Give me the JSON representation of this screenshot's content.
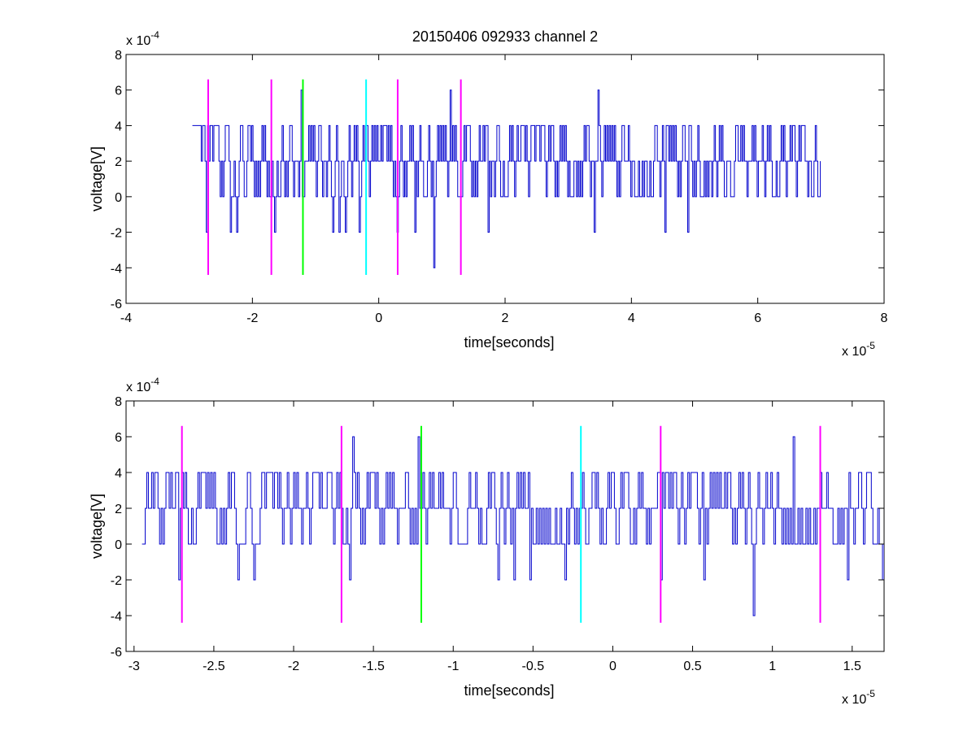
{
  "chart_data": [
    {
      "type": "line",
      "title": "20150406 092933 channel 2",
      "xlabel": "time[seconds]",
      "ylabel": "voltage[V]",
      "x_multiplier_label": "x 10",
      "x_multiplier_exp": "-5",
      "y_multiplier_label": "x 10",
      "y_multiplier_exp": "-4",
      "xlim": [
        -4,
        8
      ],
      "ylim": [
        -6,
        8
      ],
      "x_ticks": [
        "-4",
        "-2",
        "0",
        "2",
        "4",
        "6",
        "8"
      ],
      "y_ticks": [
        "-6",
        "-4",
        "-2",
        "0",
        "2",
        "4",
        "6",
        "8"
      ],
      "signal": {
        "color": "#0000cc",
        "x_start": -2.95,
        "x_end": 7.0,
        "levels": [
          -2,
          0,
          2,
          4
        ],
        "spikes": [
          {
            "x": -2.72,
            "y": -2
          },
          {
            "x": -2.35,
            "y": -2
          },
          {
            "x": -2.25,
            "y": -2
          },
          {
            "x": -1.65,
            "y": -2
          },
          {
            "x": -1.22,
            "y": 6
          },
          {
            "x": -0.72,
            "y": -2
          },
          {
            "x": -0.62,
            "y": -2
          },
          {
            "x": -0.52,
            "y": -2
          },
          {
            "x": -0.3,
            "y": -2
          },
          {
            "x": 0.3,
            "y": -2
          },
          {
            "x": 0.57,
            "y": -2
          },
          {
            "x": 0.88,
            "y": -4
          },
          {
            "x": 1.13,
            "y": 6
          },
          {
            "x": 1.74,
            "y": -2
          },
          {
            "x": 3.42,
            "y": -2
          },
          {
            "x": 3.48,
            "y": 6
          },
          {
            "x": 4.53,
            "y": -2
          },
          {
            "x": 4.88,
            "y": -2
          },
          {
            "x": 6.72,
            "y": 4
          }
        ]
      },
      "markers": [
        {
          "x": -2.7,
          "color": "#ff00ff"
        },
        {
          "x": -1.7,
          "color": "#ff00ff"
        },
        {
          "x": -1.2,
          "color": "#00ff00"
        },
        {
          "x": -0.2,
          "color": "#00ffff"
        },
        {
          "x": 0.3,
          "color": "#ff00ff"
        },
        {
          "x": 1.3,
          "color": "#ff00ff"
        }
      ],
      "marker_range": [
        -4.4,
        6.6
      ]
    },
    {
      "type": "line",
      "title": "",
      "xlabel": "time[seconds]",
      "ylabel": "voltage[V]",
      "x_multiplier_label": "x 10",
      "x_multiplier_exp": "-5",
      "y_multiplier_label": "x 10",
      "y_multiplier_exp": "-4",
      "xlim": [
        -3.05,
        1.7
      ],
      "ylim": [
        -6,
        8
      ],
      "x_ticks": [
        "-3",
        "-2.5",
        "-2",
        "-1.5",
        "-1",
        "-0.5",
        "0",
        "0.5",
        "1",
        "1.5"
      ],
      "y_ticks": [
        "-6",
        "-4",
        "-2",
        "0",
        "2",
        "4",
        "6",
        "8"
      ],
      "signal": {
        "color": "#0000cc",
        "x_start": -2.95,
        "x_end": 1.7,
        "levels": [
          -2,
          0,
          2,
          4
        ],
        "spikes": [
          {
            "x": -2.72,
            "y": -2
          },
          {
            "x": -2.35,
            "y": -2
          },
          {
            "x": -2.25,
            "y": -2
          },
          {
            "x": -1.65,
            "y": -2
          },
          {
            "x": -1.63,
            "y": 6
          },
          {
            "x": -1.22,
            "y": 6
          },
          {
            "x": -0.72,
            "y": -2
          },
          {
            "x": -0.62,
            "y": -2
          },
          {
            "x": -0.52,
            "y": -2
          },
          {
            "x": -0.3,
            "y": -2
          },
          {
            "x": 0.3,
            "y": -2
          },
          {
            "x": 0.57,
            "y": -2
          },
          {
            "x": 0.88,
            "y": -4
          },
          {
            "x": 1.13,
            "y": 6
          },
          {
            "x": 1.47,
            "y": -2
          },
          {
            "x": 1.69,
            "y": -2
          }
        ]
      },
      "markers": [
        {
          "x": -2.7,
          "color": "#ff00ff"
        },
        {
          "x": -1.7,
          "color": "#ff00ff"
        },
        {
          "x": -1.2,
          "color": "#00ff00"
        },
        {
          "x": -0.2,
          "color": "#00ffff"
        },
        {
          "x": 0.3,
          "color": "#ff00ff"
        },
        {
          "x": 1.3,
          "color": "#ff00ff"
        }
      ],
      "marker_range": [
        -4.4,
        6.6
      ]
    }
  ]
}
